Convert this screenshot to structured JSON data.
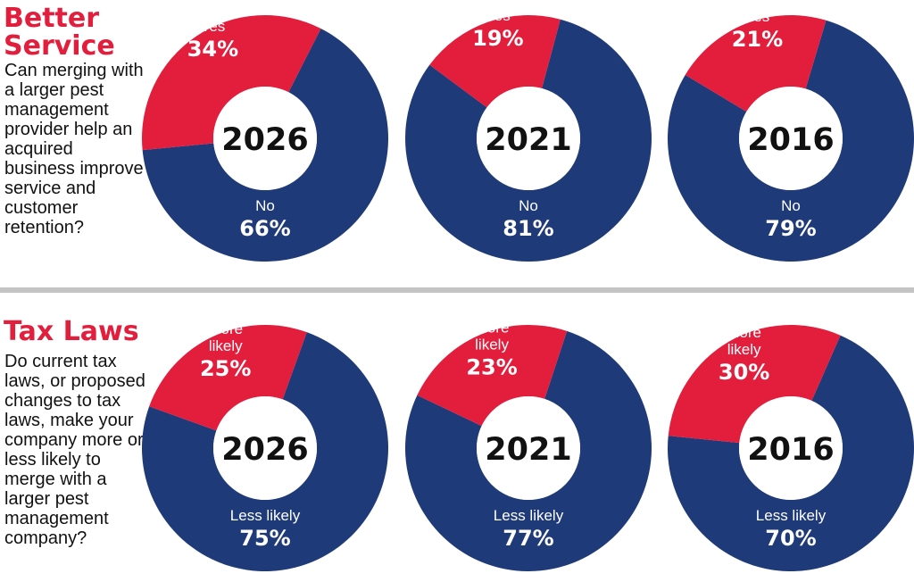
{
  "colors": {
    "accent": "#e31d3c",
    "primary": "#1f3a78",
    "divider": "#c4c4c4"
  },
  "sections": [
    {
      "title": "Better Service",
      "question": "Can merging with a larger pest management provider help an acquired business improve service and customer retention?"
    },
    {
      "title": "Tax Laws",
      "question": "Do current tax laws, or proposed changes to tax laws, make your company more or less likely to merge with a larger pest management company?"
    }
  ],
  "chart_data": [
    {
      "type": "pie",
      "donut": true,
      "center_label": "2026",
      "slices": [
        {
          "label": "Yes",
          "value": 34,
          "display": "34%"
        },
        {
          "label": "No",
          "value": 66,
          "display": "66%"
        }
      ]
    },
    {
      "type": "pie",
      "donut": true,
      "center_label": "2021",
      "slices": [
        {
          "label": "Yes",
          "value": 19,
          "display": "19%"
        },
        {
          "label": "No",
          "value": 81,
          "display": "81%"
        }
      ]
    },
    {
      "type": "pie",
      "donut": true,
      "center_label": "2016",
      "slices": [
        {
          "label": "Yes",
          "value": 21,
          "display": "21%"
        },
        {
          "label": "No",
          "value": 79,
          "display": "79%"
        }
      ]
    },
    {
      "type": "pie",
      "donut": true,
      "center_label": "2026",
      "slices": [
        {
          "label": "More likely",
          "value": 25,
          "display": "25%"
        },
        {
          "label": "Less likely",
          "value": 75,
          "display": "75%"
        }
      ]
    },
    {
      "type": "pie",
      "donut": true,
      "center_label": "2021",
      "slices": [
        {
          "label": "More likely",
          "value": 23,
          "display": "23%"
        },
        {
          "label": "Less likely",
          "value": 77,
          "display": "77%"
        }
      ]
    },
    {
      "type": "pie",
      "donut": true,
      "center_label": "2016",
      "slices": [
        {
          "label": "More likely",
          "value": 30,
          "display": "30%"
        },
        {
          "label": "Less likely",
          "value": 70,
          "display": "70%"
        }
      ]
    }
  ]
}
